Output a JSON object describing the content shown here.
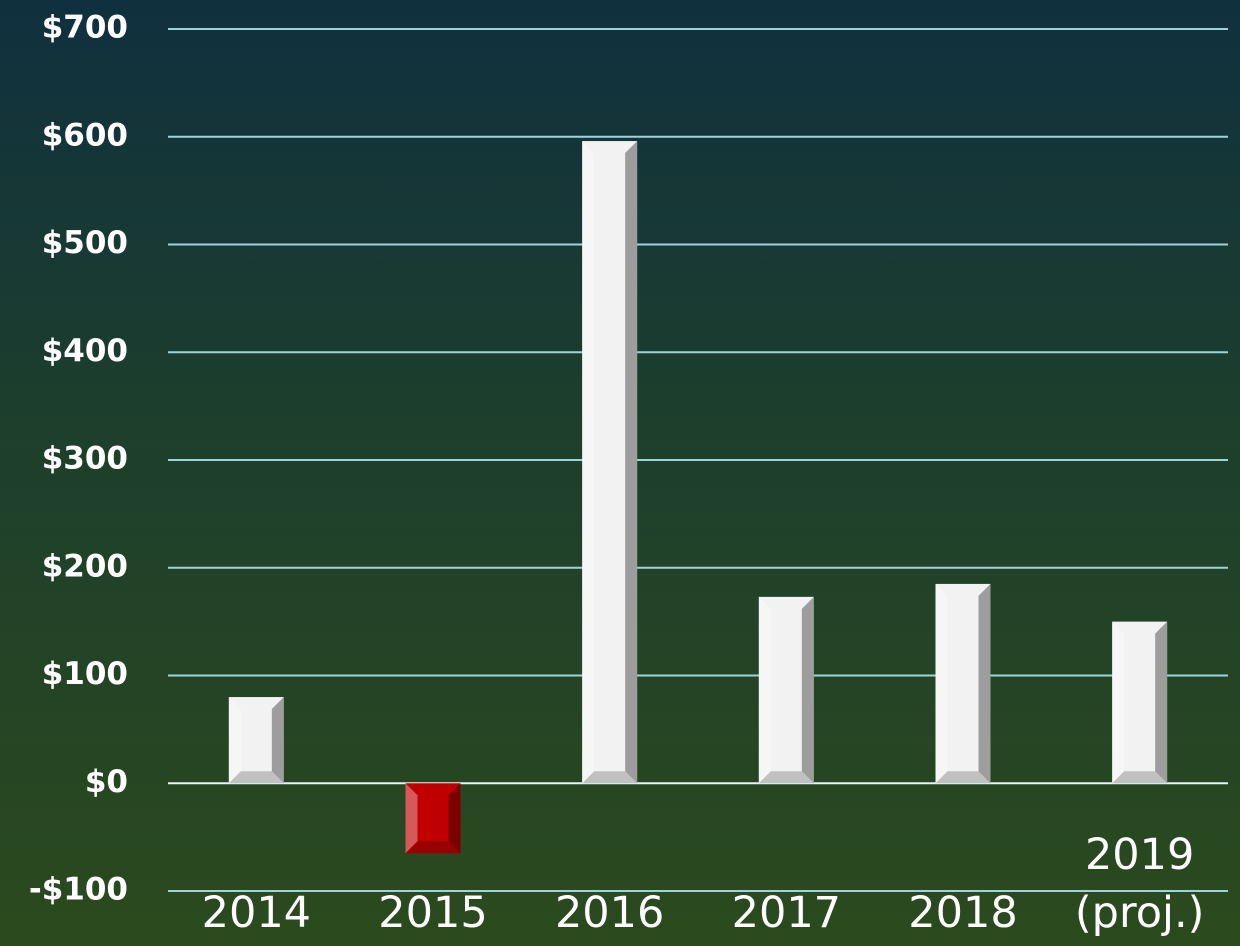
{
  "chart_data": {
    "type": "bar",
    "categories": [
      "2014",
      "2015",
      "2016",
      "2017",
      "2018",
      "2019 (proj.)"
    ],
    "values": [
      80,
      -65,
      596,
      173,
      185,
      150
    ],
    "color": "#f2f2f2",
    "negative_color": "#c00000",
    "ylim": [
      -100,
      700
    ],
    "yticks": [
      {
        "value": -100,
        "label": "-$100"
      },
      {
        "value": 0,
        "label": "$0"
      },
      {
        "value": 100,
        "label": "$100"
      },
      {
        "value": 200,
        "label": "$200"
      },
      {
        "value": 300,
        "label": "$300"
      },
      {
        "value": 400,
        "label": "$400"
      },
      {
        "value": 500,
        "label": "$500"
      },
      {
        "value": 600,
        "label": "$600"
      },
      {
        "value": 700,
        "label": "$700"
      }
    ],
    "grid": true
  }
}
